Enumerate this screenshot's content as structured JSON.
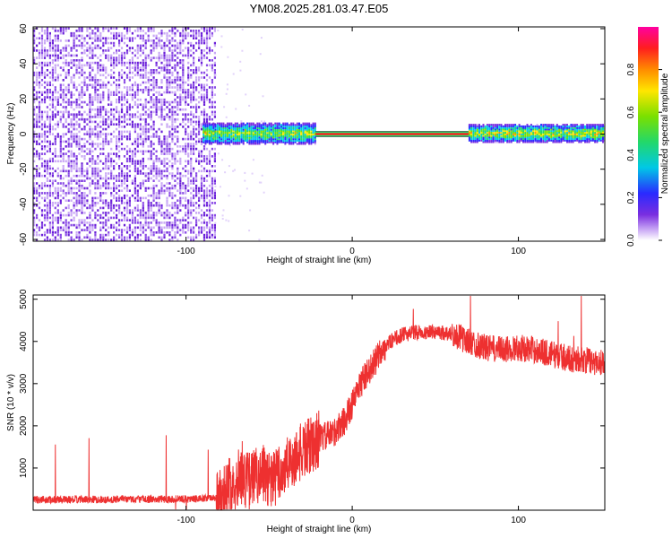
{
  "title": "YM08.2025.281.03.47.E05",
  "colors": {
    "line": "#ee3030",
    "noise": "#7a2ee0",
    "axis": "#000000"
  },
  "chart_data": [
    {
      "type": "heatmap",
      "name": "spectrogram",
      "xlabel": "Height of straight line (km)",
      "ylabel": "Frequency (Hz)",
      "xlim": [
        -192,
        152
      ],
      "ylim": [
        -61,
        61
      ],
      "xticks": [
        -100,
        0,
        100
      ],
      "yticks": [
        -60,
        -40,
        -20,
        0,
        20,
        40,
        60
      ],
      "colorbar": {
        "label": "Normalized spectral amplitude",
        "range": [
          0,
          1
        ],
        "ticks": [
          0.0,
          0.2,
          0.4,
          0.6,
          0.8
        ]
      },
      "regions": [
        {
          "x": [
            -192,
            -83
          ],
          "freq": [
            -61,
            61
          ],
          "amplitude": 0.05,
          "pattern": "broadband noise"
        },
        {
          "x": [
            -90,
            -22
          ],
          "freq": [
            -6,
            6
          ],
          "amplitude": 0.45,
          "pattern": "turbulent narrowband"
        },
        {
          "x": [
            -22,
            70
          ],
          "freq": [
            -1,
            1
          ],
          "amplitude": 0.95,
          "pattern": "steady carrier line"
        },
        {
          "x": [
            70,
            152
          ],
          "freq": [
            -5,
            5
          ],
          "amplitude": 0.5,
          "pattern": "turbulent narrowband"
        }
      ]
    },
    {
      "type": "line",
      "name": "snr",
      "xlabel": "Height of straight line (km)",
      "ylabel": "SNR (10 * v/v)",
      "xlim": [
        -192,
        152
      ],
      "ylim": [
        0,
        5100
      ],
      "xticks": [
        -100,
        0,
        100
      ],
      "yticks": [
        1000,
        2000,
        3000,
        4000,
        5000
      ],
      "series": [
        {
          "name": "SNR",
          "x": [
            -192,
            -170,
            -150,
            -130,
            -110,
            -90,
            -82,
            -75,
            -68,
            -62,
            -55,
            -48,
            -40,
            -33,
            -26,
            -20,
            -12,
            -5,
            0,
            5,
            10,
            15,
            20,
            25,
            30,
            35,
            40,
            50,
            60,
            70,
            80,
            90,
            100,
            110,
            120,
            130,
            140,
            152
          ],
          "values": [
            250,
            250,
            255,
            260,
            265,
            270,
            300,
            500,
            800,
            700,
            900,
            700,
            1000,
            1300,
            1500,
            1700,
            1800,
            2100,
            2500,
            3000,
            3300,
            3600,
            3900,
            4050,
            4150,
            4200,
            4220,
            4230,
            4180,
            4000,
            3850,
            3800,
            3850,
            3800,
            3700,
            3600,
            3550,
            3500
          ]
        }
      ]
    }
  ]
}
